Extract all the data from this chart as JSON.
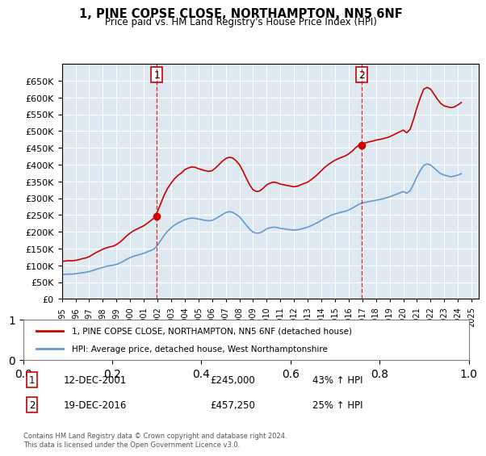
{
  "title": "1, PINE COPSE CLOSE, NORTHAMPTON, NN5 6NF",
  "subtitle": "Price paid vs. HM Land Registry's House Price Index (HPI)",
  "ylabel": "",
  "background_color": "#dde8f0",
  "plot_bg_color": "#dde8f0",
  "red_line_label": "1, PINE COPSE CLOSE, NORTHAMPTON, NN5 6NF (detached house)",
  "blue_line_label": "HPI: Average price, detached house, West Northamptonshire",
  "sale1_date": "12-DEC-2001",
  "sale1_price": "£245,000",
  "sale1_hpi": "43% ↑ HPI",
  "sale1_label": "1",
  "sale1_year": 2001.95,
  "sale1_value": 245000,
  "sale2_date": "19-DEC-2016",
  "sale2_price": "£457,250",
  "sale2_hpi": "25% ↑ HPI",
  "sale2_label": "2",
  "sale2_year": 2016.95,
  "sale2_value": 457250,
  "ylim_min": 0,
  "ylim_max": 700000,
  "yticks": [
    0,
    50000,
    100000,
    150000,
    200000,
    250000,
    300000,
    350000,
    400000,
    450000,
    500000,
    550000,
    600000,
    650000
  ],
  "footer": "Contains HM Land Registry data © Crown copyright and database right 2024.\nThis data is licensed under the Open Government Licence v3.0.",
  "red_color": "#cc0000",
  "blue_color": "#6699cc",
  "hpi_red_data": {
    "years": [
      1995.0,
      1995.25,
      1995.5,
      1995.75,
      1996.0,
      1996.25,
      1996.5,
      1996.75,
      1997.0,
      1997.25,
      1997.5,
      1997.75,
      1998.0,
      1998.25,
      1998.5,
      1998.75,
      1999.0,
      1999.25,
      1999.5,
      1999.75,
      2000.0,
      2000.25,
      2000.5,
      2000.75,
      2001.0,
      2001.25,
      2001.5,
      2001.75,
      2002.0,
      2002.25,
      2002.5,
      2002.75,
      2003.0,
      2003.25,
      2003.5,
      2003.75,
      2004.0,
      2004.25,
      2004.5,
      2004.75,
      2005.0,
      2005.25,
      2005.5,
      2005.75,
      2006.0,
      2006.25,
      2006.5,
      2006.75,
      2007.0,
      2007.25,
      2007.5,
      2007.75,
      2008.0,
      2008.25,
      2008.5,
      2008.75,
      2009.0,
      2009.25,
      2009.5,
      2009.75,
      2010.0,
      2010.25,
      2010.5,
      2010.75,
      2011.0,
      2011.25,
      2011.5,
      2011.75,
      2012.0,
      2012.25,
      2012.5,
      2012.75,
      2013.0,
      2013.25,
      2013.5,
      2013.75,
      2014.0,
      2014.25,
      2014.5,
      2014.75,
      2015.0,
      2015.25,
      2015.5,
      2015.75,
      2016.0,
      2016.25,
      2016.5,
      2016.75,
      2017.0,
      2017.25,
      2017.5,
      2017.75,
      2018.0,
      2018.25,
      2018.5,
      2018.75,
      2019.0,
      2019.25,
      2019.5,
      2019.75,
      2020.0,
      2020.25,
      2020.5,
      2020.75,
      2021.0,
      2021.25,
      2021.5,
      2021.75,
      2022.0,
      2022.25,
      2022.5,
      2022.75,
      2023.0,
      2023.25,
      2023.5,
      2023.75,
      2024.0,
      2024.25
    ],
    "values": [
      112000,
      113000,
      114000,
      113500,
      115000,
      117000,
      120000,
      122000,
      126000,
      132000,
      138000,
      143000,
      148000,
      152000,
      155000,
      157000,
      162000,
      169000,
      178000,
      188000,
      196000,
      203000,
      208000,
      213000,
      218000,
      225000,
      233000,
      241000,
      260000,
      285000,
      310000,
      330000,
      345000,
      358000,
      368000,
      375000,
      385000,
      390000,
      393000,
      392000,
      388000,
      385000,
      382000,
      380000,
      382000,
      390000,
      400000,
      410000,
      418000,
      422000,
      420000,
      412000,
      400000,
      382000,
      360000,
      340000,
      325000,
      320000,
      322000,
      330000,
      340000,
      345000,
      348000,
      346000,
      342000,
      340000,
      338000,
      336000,
      334000,
      336000,
      340000,
      344000,
      348000,
      355000,
      363000,
      372000,
      382000,
      392000,
      400000,
      407000,
      413000,
      418000,
      422000,
      426000,
      432000,
      440000,
      450000,
      458000,
      462000,
      465000,
      468000,
      470000,
      473000,
      475000,
      477000,
      480000,
      483000,
      488000,
      493000,
      498000,
      503000,
      495000,
      505000,
      535000,
      570000,
      600000,
      625000,
      630000,
      625000,
      610000,
      595000,
      582000,
      575000,
      572000,
      570000,
      572000,
      578000,
      585000
    ]
  },
  "hpi_blue_data": {
    "years": [
      1995.0,
      1995.25,
      1995.5,
      1995.75,
      1996.0,
      1996.25,
      1996.5,
      1996.75,
      1997.0,
      1997.25,
      1997.5,
      1997.75,
      1998.0,
      1998.25,
      1998.5,
      1998.75,
      1999.0,
      1999.25,
      1999.5,
      1999.75,
      2000.0,
      2000.25,
      2000.5,
      2000.75,
      2001.0,
      2001.25,
      2001.5,
      2001.75,
      2002.0,
      2002.25,
      2002.5,
      2002.75,
      2003.0,
      2003.25,
      2003.5,
      2003.75,
      2004.0,
      2004.25,
      2004.5,
      2004.75,
      2005.0,
      2005.25,
      2005.5,
      2005.75,
      2006.0,
      2006.25,
      2006.5,
      2006.75,
      2007.0,
      2007.25,
      2007.5,
      2007.75,
      2008.0,
      2008.25,
      2008.5,
      2008.75,
      2009.0,
      2009.25,
      2009.5,
      2009.75,
      2010.0,
      2010.25,
      2010.5,
      2010.75,
      2011.0,
      2011.25,
      2011.5,
      2011.75,
      2012.0,
      2012.25,
      2012.5,
      2012.75,
      2013.0,
      2013.25,
      2013.5,
      2013.75,
      2014.0,
      2014.25,
      2014.5,
      2014.75,
      2015.0,
      2015.25,
      2015.5,
      2015.75,
      2016.0,
      2016.25,
      2016.5,
      2016.75,
      2017.0,
      2017.25,
      2017.5,
      2017.75,
      2018.0,
      2018.25,
      2018.5,
      2018.75,
      2019.0,
      2019.25,
      2019.5,
      2019.75,
      2020.0,
      2020.25,
      2020.5,
      2020.75,
      2021.0,
      2021.25,
      2021.5,
      2021.75,
      2022.0,
      2022.25,
      2022.5,
      2022.75,
      2023.0,
      2023.25,
      2023.5,
      2023.75,
      2024.0,
      2024.25
    ],
    "values": [
      73000,
      73500,
      74000,
      74000,
      75000,
      76500,
      78000,
      79500,
      81500,
      84500,
      88000,
      91000,
      94000,
      97000,
      99000,
      100500,
      103000,
      107000,
      112000,
      118000,
      123000,
      127000,
      130000,
      133000,
      136000,
      140000,
      144000,
      148500,
      160000,
      175000,
      190000,
      202000,
      212000,
      220000,
      226000,
      231000,
      236000,
      239000,
      241000,
      240000,
      238000,
      236000,
      234000,
      233000,
      234000,
      239000,
      245000,
      251000,
      257000,
      260000,
      258000,
      252000,
      245000,
      233000,
      220000,
      208000,
      199000,
      196000,
      197000,
      202000,
      209000,
      212000,
      214000,
      213000,
      210000,
      209000,
      207000,
      206000,
      205000,
      206000,
      208000,
      211000,
      214000,
      218000,
      223000,
      228000,
      234000,
      240000,
      245000,
      250000,
      253000,
      256000,
      259000,
      261000,
      265000,
      270000,
      276000,
      282000,
      286000,
      288000,
      290000,
      292000,
      294000,
      296000,
      298000,
      301000,
      304000,
      308000,
      312000,
      316000,
      320000,
      315000,
      322000,
      342000,
      364000,
      383000,
      398000,
      402000,
      399000,
      390000,
      381000,
      373000,
      369000,
      366000,
      364000,
      366000,
      369000,
      373000
    ]
  }
}
